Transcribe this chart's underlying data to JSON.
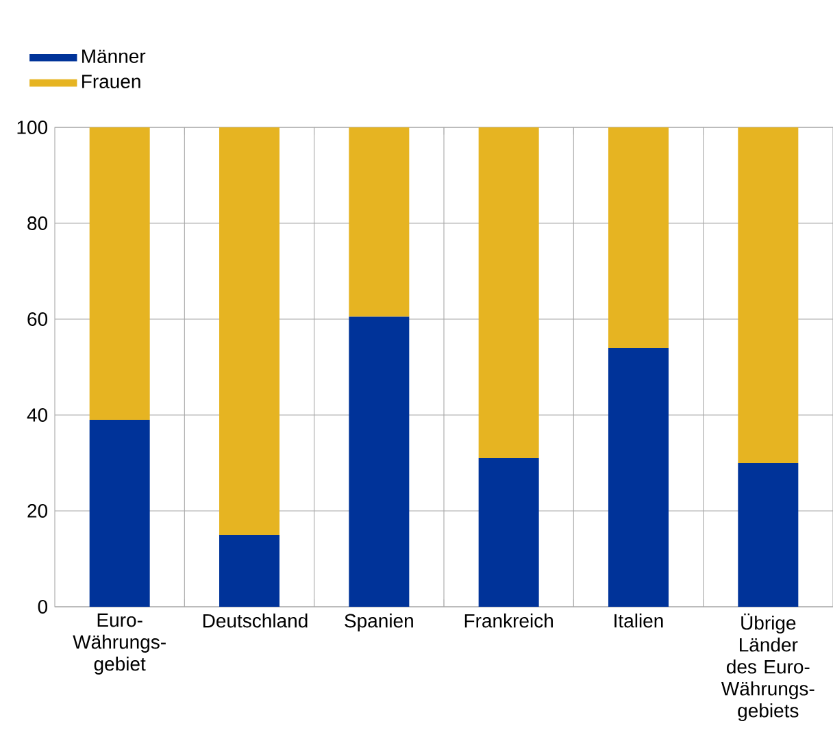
{
  "chart_data": {
    "type": "bar",
    "stacked": true,
    "categories": [
      "Euro-Währungs-gebiet",
      "Deutschland",
      "Spanien",
      "Frankreich",
      "Italien",
      "Übrige Länder des Euro-Währungs-gebiets"
    ],
    "series": [
      {
        "name": "Männer",
        "color": "#003399",
        "values": [
          39,
          15,
          60.5,
          31,
          54,
          30
        ]
      },
      {
        "name": "Frauen",
        "color": "#e6b422",
        "values": [
          61,
          85,
          39.5,
          69,
          46,
          70
        ]
      }
    ],
    "ylim": [
      0,
      100
    ],
    "yticks": [
      0,
      20,
      40,
      60,
      80,
      100
    ],
    "grid": true,
    "legend": "top left"
  }
}
